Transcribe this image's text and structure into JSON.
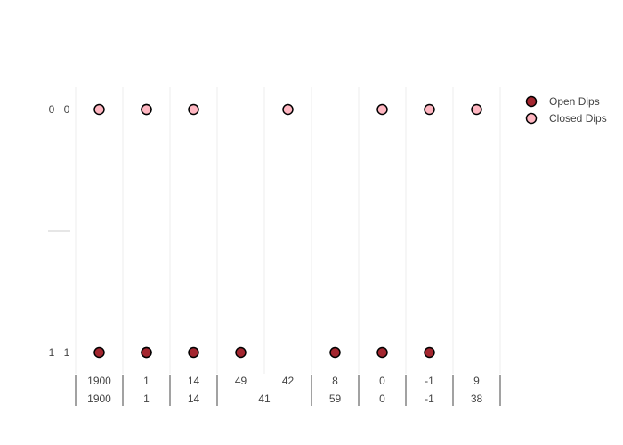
{
  "chart_data": {
    "type": "scatter",
    "title": "",
    "xlabel": "",
    "ylabel": "",
    "x_axis": {
      "type": "multicategory",
      "categories": [
        {
          "inner": "1900",
          "outer": "1900"
        },
        {
          "inner": "1",
          "outer": "1"
        },
        {
          "inner": "14",
          "outer": "14"
        },
        {
          "inner": "49",
          "outer": "41"
        },
        {
          "inner": "42",
          "outer": "41"
        },
        {
          "inner": "8",
          "outer": "59"
        },
        {
          "inner": "0",
          "outer": "0"
        },
        {
          "inner": "-1",
          "outer": "-1"
        },
        {
          "inner": "9",
          "outer": "38"
        }
      ]
    },
    "y_axis": {
      "type": "multicategory",
      "categories": [
        {
          "inner": "1",
          "outer": "1"
        },
        {
          "inner": "0",
          "outer": "0"
        }
      ]
    },
    "series": [
      {
        "name": "Open Dips",
        "color": "#a3262f",
        "points": [
          {
            "x": 0,
            "y": 0
          },
          {
            "x": 1,
            "y": 0
          },
          {
            "x": 1,
            "y": 0
          },
          {
            "x": 2,
            "y": 0
          },
          {
            "x": 3,
            "y": 0
          },
          {
            "x": 5,
            "y": 0
          },
          {
            "x": 6,
            "y": 0
          },
          {
            "x": 7,
            "y": 0
          }
        ]
      },
      {
        "name": "Closed Dips",
        "color": "#ffb6c1",
        "points": [
          {
            "x": 0,
            "y": 1
          },
          {
            "x": 1,
            "y": 1
          },
          {
            "x": 1,
            "y": 1
          },
          {
            "x": 2,
            "y": 1
          },
          {
            "x": 4,
            "y": 1
          },
          {
            "x": 6,
            "y": 1
          },
          {
            "x": 7,
            "y": 1
          },
          {
            "x": 8,
            "y": 1
          }
        ]
      }
    ],
    "legend_position": "top-right",
    "grid": true
  }
}
